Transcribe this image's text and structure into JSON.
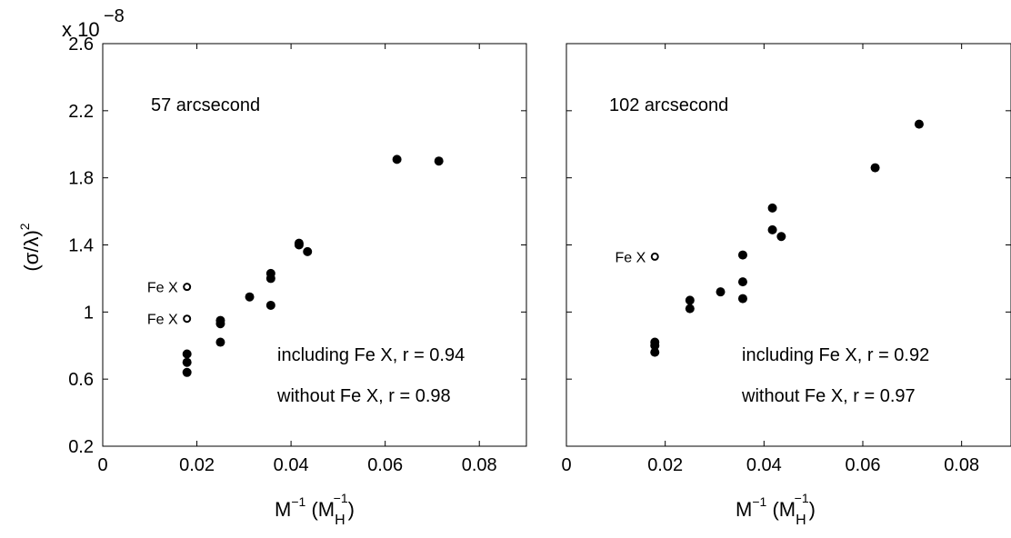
{
  "chart_data": [
    {
      "type": "scatter",
      "annotation": "57 arcsecond",
      "scale_note": {
        "base": "x 10",
        "exponent": "−8"
      },
      "ylabel": {
        "main": "(σ/λ)",
        "sup": "2"
      },
      "xlabel": {
        "M": "M",
        "sup": "−1",
        "open": " (M",
        "sub": "H",
        "sup2": "−1",
        "close": ")"
      },
      "xlim": [
        0,
        0.09
      ],
      "ylim": [
        0.2,
        2.6
      ],
      "xticks": [
        "0",
        "0.02",
        "0.04",
        "0.06",
        "0.08"
      ],
      "xtick_values": [
        0,
        0.02,
        0.04,
        0.06,
        0.08
      ],
      "yticks": [
        "0.2",
        "0.6",
        "1",
        "1.4",
        "1.8",
        "2.2",
        "2.6"
      ],
      "ytick_values": [
        0.2,
        0.6,
        1.0,
        1.4,
        1.8,
        2.2,
        2.6
      ],
      "series": [
        {
          "marker": "filled",
          "points": [
            [
              0.0179,
              0.64
            ],
            [
              0.0179,
              0.7
            ],
            [
              0.0179,
              0.75
            ],
            [
              0.025,
              0.82
            ],
            [
              0.025,
              0.93
            ],
            [
              0.025,
              0.95
            ],
            [
              0.0312,
              1.09
            ],
            [
              0.0357,
              1.04
            ],
            [
              0.0357,
              1.2
            ],
            [
              0.0357,
              1.23
            ],
            [
              0.0417,
              1.4
            ],
            [
              0.0417,
              1.41
            ],
            [
              0.0435,
              1.36
            ],
            [
              0.0625,
              1.91
            ],
            [
              0.0714,
              1.9
            ]
          ]
        },
        {
          "marker": "open",
          "points": [
            [
              0.0179,
              0.96
            ],
            [
              0.0179,
              1.15
            ]
          ],
          "point_labels": [
            "Fe X",
            "Fe X"
          ]
        }
      ],
      "stats_including": "including Fe X, r = 0.94",
      "stats_without": "without Fe X, r = 0.98"
    },
    {
      "type": "scatter",
      "annotation": "102 arcsecond",
      "xlabel": {
        "M": "M",
        "sup": "−1",
        "open": " (M",
        "sub": "H",
        "sup2": "−1",
        "close": ")"
      },
      "xlim": [
        0,
        0.09
      ],
      "ylim": [
        0.2,
        2.6
      ],
      "xticks": [
        "0",
        "0.02",
        "0.04",
        "0.06",
        "0.08"
      ],
      "xtick_values": [
        0,
        0.02,
        0.04,
        0.06,
        0.08
      ],
      "ytick_values": [
        0.2,
        0.6,
        1.0,
        1.4,
        1.8,
        2.2,
        2.6
      ],
      "series": [
        {
          "marker": "filled",
          "points": [
            [
              0.0179,
              0.76
            ],
            [
              0.0179,
              0.8
            ],
            [
              0.0179,
              0.82
            ],
            [
              0.025,
              1.02
            ],
            [
              0.025,
              1.07
            ],
            [
              0.0312,
              1.12
            ],
            [
              0.0357,
              1.08
            ],
            [
              0.0357,
              1.18
            ],
            [
              0.0357,
              1.34
            ],
            [
              0.0417,
              1.49
            ],
            [
              0.0417,
              1.62
            ],
            [
              0.0435,
              1.45
            ],
            [
              0.0625,
              1.86
            ],
            [
              0.0714,
              2.12
            ]
          ]
        },
        {
          "marker": "open",
          "points": [
            [
              0.0179,
              1.33
            ]
          ],
          "point_labels": [
            "Fe X"
          ]
        }
      ],
      "stats_including": "including Fe X, r = 0.92",
      "stats_without": "without Fe X, r = 0.97"
    }
  ]
}
